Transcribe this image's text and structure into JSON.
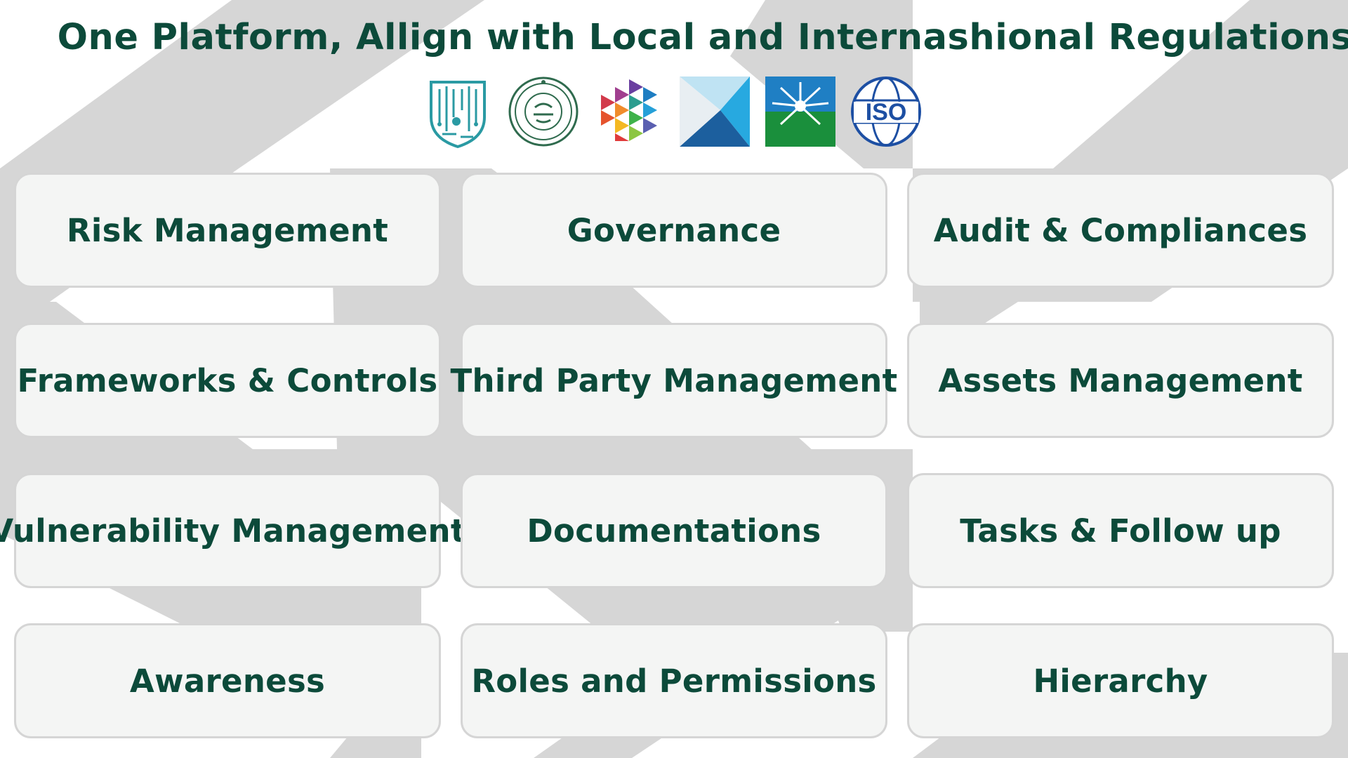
{
  "page": {
    "title": "One Platform, Allign with Local and Internashional Regulations"
  },
  "logos": [
    {
      "name": "nca-logo-icon"
    },
    {
      "name": "sama-seal-icon"
    },
    {
      "name": "hexagon-mosaic-logo-icon"
    },
    {
      "name": "blue-triangles-logo-icon"
    },
    {
      "name": "aramco-star-logo-icon"
    },
    {
      "name": "iso-globe-logo-icon"
    }
  ],
  "modules": [
    {
      "label": "Risk Management"
    },
    {
      "label": "Governance"
    },
    {
      "label": "Audit & Compliances"
    },
    {
      "label": "Frameworks & Controls"
    },
    {
      "label": "Third Party Management"
    },
    {
      "label": "Assets Management"
    },
    {
      "label": "Vulnerability Management"
    },
    {
      "label": "Documentations"
    },
    {
      "label": "Tasks & Follow up"
    },
    {
      "label": "Awareness"
    },
    {
      "label": "Roles and Permissions"
    },
    {
      "label": "Hierarchy"
    }
  ],
  "colors": {
    "text": "#0c4a3a",
    "card_bg": "#f4f5f4",
    "card_border": "#d5d5d5",
    "background_shape": "#d6d6d6"
  }
}
